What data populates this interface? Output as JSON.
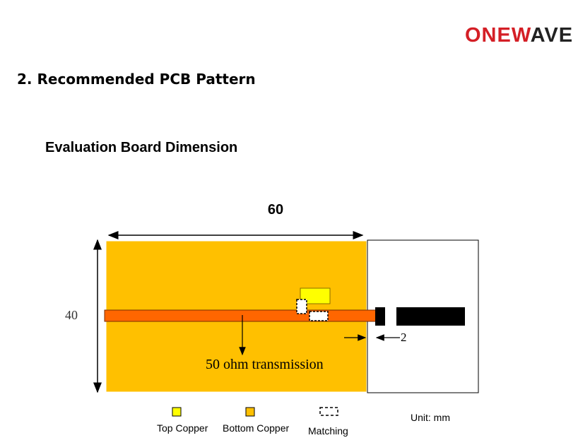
{
  "logo": {
    "part1": "ONE",
    "part2": "W",
    "part3": "AVE",
    "colors": {
      "red": "#d41f26",
      "dark": "#222222"
    }
  },
  "section_title": "2. Recommended PCB Pattern",
  "sub_title": "Evaluation Board Dimension",
  "diagram": {
    "width_label": "60",
    "height_label": "40",
    "connector_label": "2",
    "transmission_label": "50 ohm transmission",
    "colors": {
      "board": "#ffc000",
      "top_copper": "#ffff00",
      "line": "#ff6600",
      "connector": "#000000"
    }
  },
  "legend": {
    "top_copper": "Top Copper",
    "bottom_copper": "Bottom Copper",
    "matching": "Matching",
    "unit": "Unit: mm"
  }
}
